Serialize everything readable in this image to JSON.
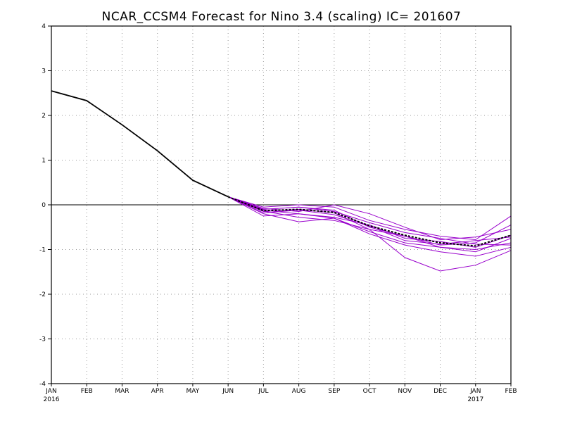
{
  "chart_data": {
    "type": "line",
    "title": "NCAR_CCSM4 Forecast for Nino 3.4 (scaling)  IC= 201607",
    "xlabel": "",
    "ylabel": "",
    "x_months": [
      "JAN",
      "FEB",
      "MAR",
      "APR",
      "MAY",
      "JUN",
      "JUL",
      "AUG",
      "SEP",
      "OCT",
      "NOV",
      "DEC",
      "JAN",
      "FEB"
    ],
    "x_years": [
      {
        "index": 0,
        "label": "2016"
      },
      {
        "index": 12,
        "label": "2017"
      }
    ],
    "ylim": [
      -4,
      4
    ],
    "yticks": [
      -4,
      -3,
      -2,
      -1,
      0,
      1,
      2,
      3,
      4
    ],
    "grid": true,
    "zero_line": true,
    "colors": {
      "observed": "#000000",
      "members": "#9900cc",
      "ensemble_mean": "#000000",
      "grid": "#999999",
      "zero_line": "#000000"
    },
    "observed": {
      "x": [
        0,
        1,
        2,
        3,
        4,
        5
      ],
      "values": [
        2.55,
        2.33,
        1.79,
        1.21,
        0.55,
        0.18
      ]
    },
    "ensemble_mean": {
      "x": [
        5,
        6,
        7,
        8,
        9,
        10,
        11,
        12,
        13
      ],
      "values": [
        0.18,
        -0.13,
        -0.1,
        -0.17,
        -0.47,
        -0.68,
        -0.85,
        -0.92,
        -0.68
      ]
    },
    "members": [
      {
        "x": [
          5,
          6,
          7,
          8,
          9,
          10,
          11,
          12,
          13
        ],
        "values": [
          0.18,
          -0.25,
          -0.2,
          -0.3,
          -0.6,
          -0.85,
          -0.95,
          -1.05,
          -0.75
        ]
      },
      {
        "x": [
          5,
          6,
          7,
          8,
          9,
          10,
          11,
          12,
          13
        ],
        "values": [
          0.18,
          -0.05,
          0.0,
          -0.05,
          -0.35,
          -0.55,
          -0.7,
          -0.78,
          -0.25
        ]
      },
      {
        "x": [
          5,
          6,
          7,
          8,
          9,
          10,
          11,
          12,
          13
        ],
        "values": [
          0.18,
          -0.1,
          -0.05,
          -0.12,
          -0.5,
          -0.7,
          -0.9,
          -0.85,
          -0.45
        ]
      },
      {
        "x": [
          5,
          6,
          7,
          8,
          9,
          10,
          11,
          12,
          13
        ],
        "values": [
          0.18,
          -0.15,
          -0.1,
          -0.18,
          -0.55,
          -1.18,
          -1.48,
          -1.35,
          -1.02
        ]
      },
      {
        "x": [
          5,
          6,
          7,
          8,
          9,
          10,
          11,
          12,
          13
        ],
        "values": [
          0.18,
          -0.2,
          -0.38,
          -0.3,
          -0.65,
          -0.9,
          -1.05,
          -1.15,
          -0.95
        ]
      },
      {
        "x": [
          5,
          6,
          7,
          8,
          9,
          10,
          11,
          12,
          13
        ],
        "values": [
          0.18,
          -0.12,
          -0.2,
          -0.28,
          -0.45,
          -0.75,
          -0.82,
          -0.95,
          -0.68
        ]
      },
      {
        "x": [
          5,
          6,
          7,
          8,
          9,
          10,
          11,
          12,
          13
        ],
        "values": [
          0.18,
          -0.08,
          -0.15,
          0.0,
          -0.2,
          -0.5,
          -0.78,
          -0.72,
          -0.55
        ]
      },
      {
        "x": [
          5,
          6,
          7,
          8,
          9,
          10,
          11,
          12,
          13
        ],
        "values": [
          0.18,
          -0.18,
          -0.12,
          -0.22,
          -0.48,
          -0.8,
          -0.88,
          -0.8,
          -0.72
        ]
      },
      {
        "x": [
          5,
          6,
          7,
          8,
          9,
          10,
          11,
          12,
          13
        ],
        "values": [
          0.18,
          -0.1,
          -0.05,
          -0.15,
          -0.4,
          -0.62,
          -0.75,
          -0.88,
          -0.9
        ]
      },
      {
        "x": [
          5,
          6,
          7,
          8,
          9,
          10,
          11,
          12,
          13
        ],
        "values": [
          0.18,
          -0.14,
          -0.28,
          -0.35,
          -0.55,
          -0.7,
          -0.95,
          -1.0,
          -0.85
        ]
      }
    ]
  }
}
